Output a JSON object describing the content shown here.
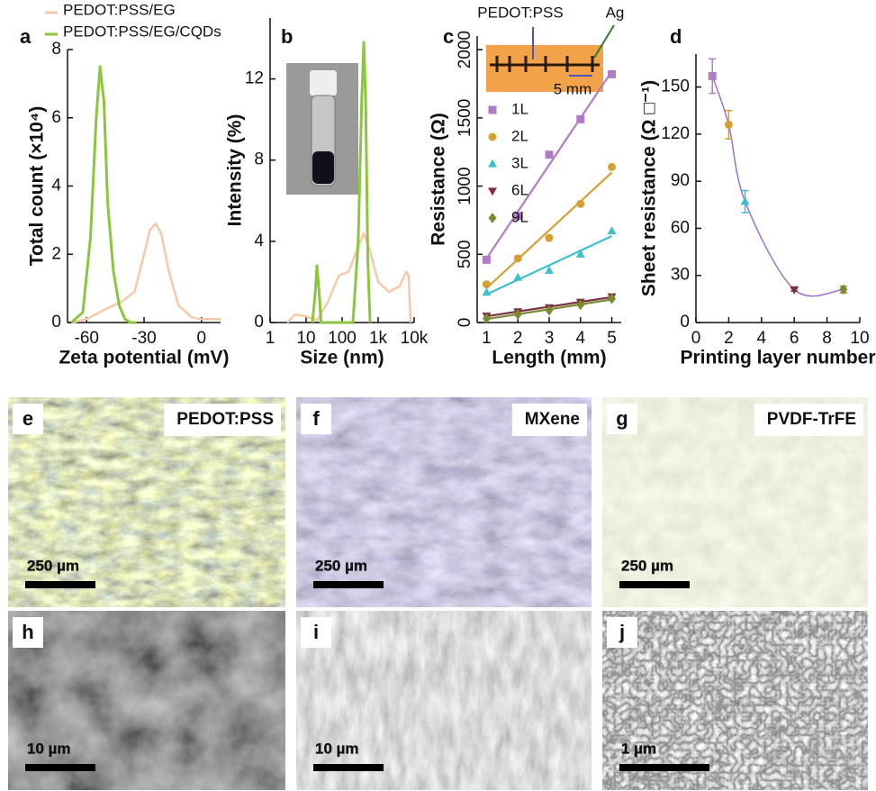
{
  "chart_data": [
    {
      "type": "line",
      "panel_label": "a",
      "x_label": "Zeta potential (mV)",
      "y_label": "Total count (×10⁴)",
      "xlim": [
        -70,
        10
      ],
      "xticks": [
        -60,
        -30,
        0
      ],
      "ylim": [
        0,
        8
      ],
      "yticks": [
        0,
        2,
        4,
        6,
        8
      ],
      "series": [
        {
          "name": "PEDOT:PSS/EG",
          "color": "#f6c9a9",
          "x": [
            -68,
            -60,
            -50,
            -42,
            -35,
            -30,
            -27,
            -24,
            -21,
            -17,
            -12,
            -5,
            0,
            10
          ],
          "values": [
            0,
            0.1,
            0.4,
            0.6,
            0.9,
            2.0,
            2.7,
            2.9,
            2.6,
            1.5,
            0.5,
            0.15,
            0.1,
            0.1
          ]
        },
        {
          "name": "PEDOT:PSS/EG/CQDs",
          "color": "#8cc63f",
          "x": [
            -68,
            -62,
            -58,
            -55,
            -53,
            -51,
            -49,
            -46,
            -43,
            -40,
            -37,
            -34
          ],
          "values": [
            0,
            0.3,
            2.5,
            6,
            7.5,
            6.5,
            3.5,
            1.5,
            0.5,
            0.1,
            0,
            0
          ]
        }
      ]
    },
    {
      "type": "line",
      "panel_label": "b",
      "x_label": "Size (nm)",
      "y_label": "Intensity (%)",
      "x_scale": "log",
      "xlim": [
        1,
        10000
      ],
      "xticks": [
        1,
        10,
        100,
        {
          "value": 1000,
          "label": "1k"
        },
        {
          "value": 10000,
          "label": "10k"
        }
      ],
      "ylim": [
        0,
        15
      ],
      "yticks": [
        0,
        4,
        8,
        12
      ],
      "series": [
        {
          "name": "PEDOT:PSS/EG",
          "color": "#f6c9a9",
          "x": [
            3,
            5,
            10,
            20,
            40,
            80,
            150,
            250,
            400,
            600,
            1000,
            2000,
            4000,
            6000,
            7000,
            8000
          ],
          "values": [
            0,
            0.4,
            0.3,
            0.1,
            1.0,
            2.3,
            2.5,
            3.5,
            4.4,
            3.5,
            2,
            1.5,
            1.8,
            2.5,
            2.3,
            0
          ]
        },
        {
          "name": "PEDOT:PSS/EG/CQDs",
          "color": "#8cc63f",
          "x": [
            15,
            18,
            20,
            23,
            26,
            30,
            200,
            280,
            350,
            400,
            450,
            520,
            600
          ],
          "values": [
            0,
            1.5,
            2.8,
            1.5,
            0,
            0,
            0,
            4,
            11,
            13.8,
            11,
            3,
            0
          ]
        }
      ]
    },
    {
      "type": "scatter",
      "panel_label": "c",
      "x_label": "Length (mm)",
      "y_label": "Resistance (Ω)",
      "annotations": [
        "PEDOT:PSS",
        "Ag",
        "5 mm"
      ],
      "x": [
        1,
        2,
        3,
        4,
        5
      ],
      "xlim": [
        0.7,
        5.3
      ],
      "xticks": [
        1,
        2,
        3,
        4,
        5
      ],
      "ylim": [
        0,
        2100
      ],
      "yticks": [
        0,
        500,
        1000,
        1500,
        2000
      ],
      "series": [
        {
          "name": "1L",
          "color": "#b07cc6",
          "marker": "square",
          "values": [
            460,
            780,
            1230,
            1490,
            1820
          ]
        },
        {
          "name": "2L",
          "color": "#d4a034",
          "marker": "circle",
          "values": [
            280,
            470,
            620,
            870,
            1140
          ]
        },
        {
          "name": "3L",
          "color": "#3ec0cc",
          "marker": "triangle-up",
          "values": [
            220,
            330,
            380,
            500,
            670
          ]
        },
        {
          "name": "6L",
          "color": "#7a3040",
          "marker": "triangle-down",
          "values": [
            50,
            80,
            110,
            150,
            190
          ]
        },
        {
          "name": "9L",
          "color": "#7a8a30",
          "marker": "diamond",
          "values": [
            30,
            60,
            90,
            130,
            175
          ]
        }
      ]
    },
    {
      "type": "errorbar",
      "panel_label": "d",
      "x_label": "Printing layer number",
      "y_label": "Sheet resistance (Ω □⁻¹)",
      "xlim": [
        0,
        10
      ],
      "xticks": [
        0,
        2,
        4,
        6,
        8,
        10
      ],
      "ylim": [
        0,
        171
      ],
      "yticks": [
        0,
        30,
        60,
        90,
        120,
        150
      ],
      "line_color": "#a070c8",
      "x": [
        1,
        2,
        3,
        6,
        9
      ],
      "values": [
        157,
        126,
        77,
        21,
        21
      ],
      "errors": [
        11,
        9,
        7,
        1,
        2
      ],
      "colors": [
        "#b07cc6",
        "#d4a034",
        "#3ec0cc",
        "#7a3040",
        "#7a8a30"
      ],
      "markers": [
        "square",
        "circle",
        "triangle-up",
        "triangle-down",
        "diamond"
      ]
    }
  ],
  "micrographs": [
    {
      "label": "e",
      "title": "PEDOT:PSS",
      "scale_bar": "250 µm"
    },
    {
      "label": "f",
      "title": "MXene",
      "scale_bar": "250 µm"
    },
    {
      "label": "g",
      "title": "PVDF-TrFE",
      "scale_bar": "250 µm"
    },
    {
      "label": "h",
      "scale_bar": "10 µm"
    },
    {
      "label": "i",
      "scale_bar": "10 µm"
    },
    {
      "label": "j",
      "scale_bar": "1 µm"
    }
  ]
}
